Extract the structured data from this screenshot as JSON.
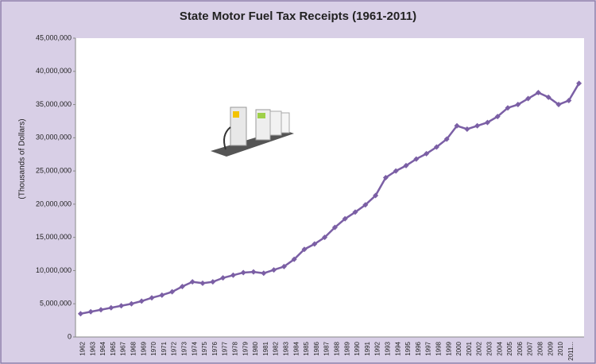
{
  "chart_data": {
    "type": "line",
    "title": "State Motor Fuel Tax Receipts (1961-2011)",
    "y_label": "(Thousands of Dollars)",
    "categories": [
      "1962",
      "1963",
      "1964",
      "1965",
      "1967",
      "1968",
      "1969",
      "1970",
      "1971",
      "1972",
      "1973",
      "1974",
      "1975",
      "1976",
      "1977",
      "1978",
      "1979",
      "1980",
      "1981",
      "1982",
      "1983",
      "1984",
      "1985",
      "1986",
      "1987",
      "1988",
      "1989",
      "1990",
      "1991",
      "1992",
      "1993",
      "1994",
      "1995",
      "1996",
      "1997",
      "1998",
      "1999",
      "2000",
      "2001",
      "2002",
      "2003",
      "2004",
      "2005",
      "2006",
      "2007",
      "2008",
      "2009",
      "2010",
      "2011...",
      null
    ],
    "series": [
      {
        "name": "State Motor Fuel Tax Receipts",
        "color": "#7b5fa5",
        "values": [
          3500000,
          3800000,
          4100000,
          4400000,
          4700000,
          5000000,
          5400000,
          5900000,
          6300000,
          6800000,
          7600000,
          8300000,
          8100000,
          8300000,
          8900000,
          9300000,
          9700000,
          9800000,
          9600000,
          10100000,
          10600000,
          11700000,
          13200000,
          14000000,
          15000000,
          16500000,
          17800000,
          18800000,
          19900000,
          21300000,
          24000000,
          25000000,
          25800000,
          26800000,
          27600000,
          28600000,
          29800000,
          31800000,
          31300000,
          31800000,
          32300000,
          33200000,
          34500000,
          35000000,
          35900000,
          36800000,
          36100000,
          35000000,
          35600000,
          38200000
        ]
      }
    ],
    "ylim": [
      0,
      45000000
    ],
    "yticks": [
      0,
      {
        "value": 5000000,
        "label": "5,000,000"
      },
      {
        "value": 10000000,
        "label": "10,000,000"
      },
      {
        "value": 15000000,
        "label": "15,000,000"
      },
      {
        "value": 20000000,
        "label": "20,000,000"
      },
      {
        "value": 25000000,
        "label": "25,000,000"
      },
      {
        "value": 30000000,
        "label": "30,000,000"
      },
      {
        "value": 35000000,
        "label": "35,000,000"
      },
      {
        "value": 40000000,
        "label": "40,000,000"
      },
      {
        "value": 45000000,
        "label": "45,000,000"
      }
    ],
    "grid": false
  }
}
